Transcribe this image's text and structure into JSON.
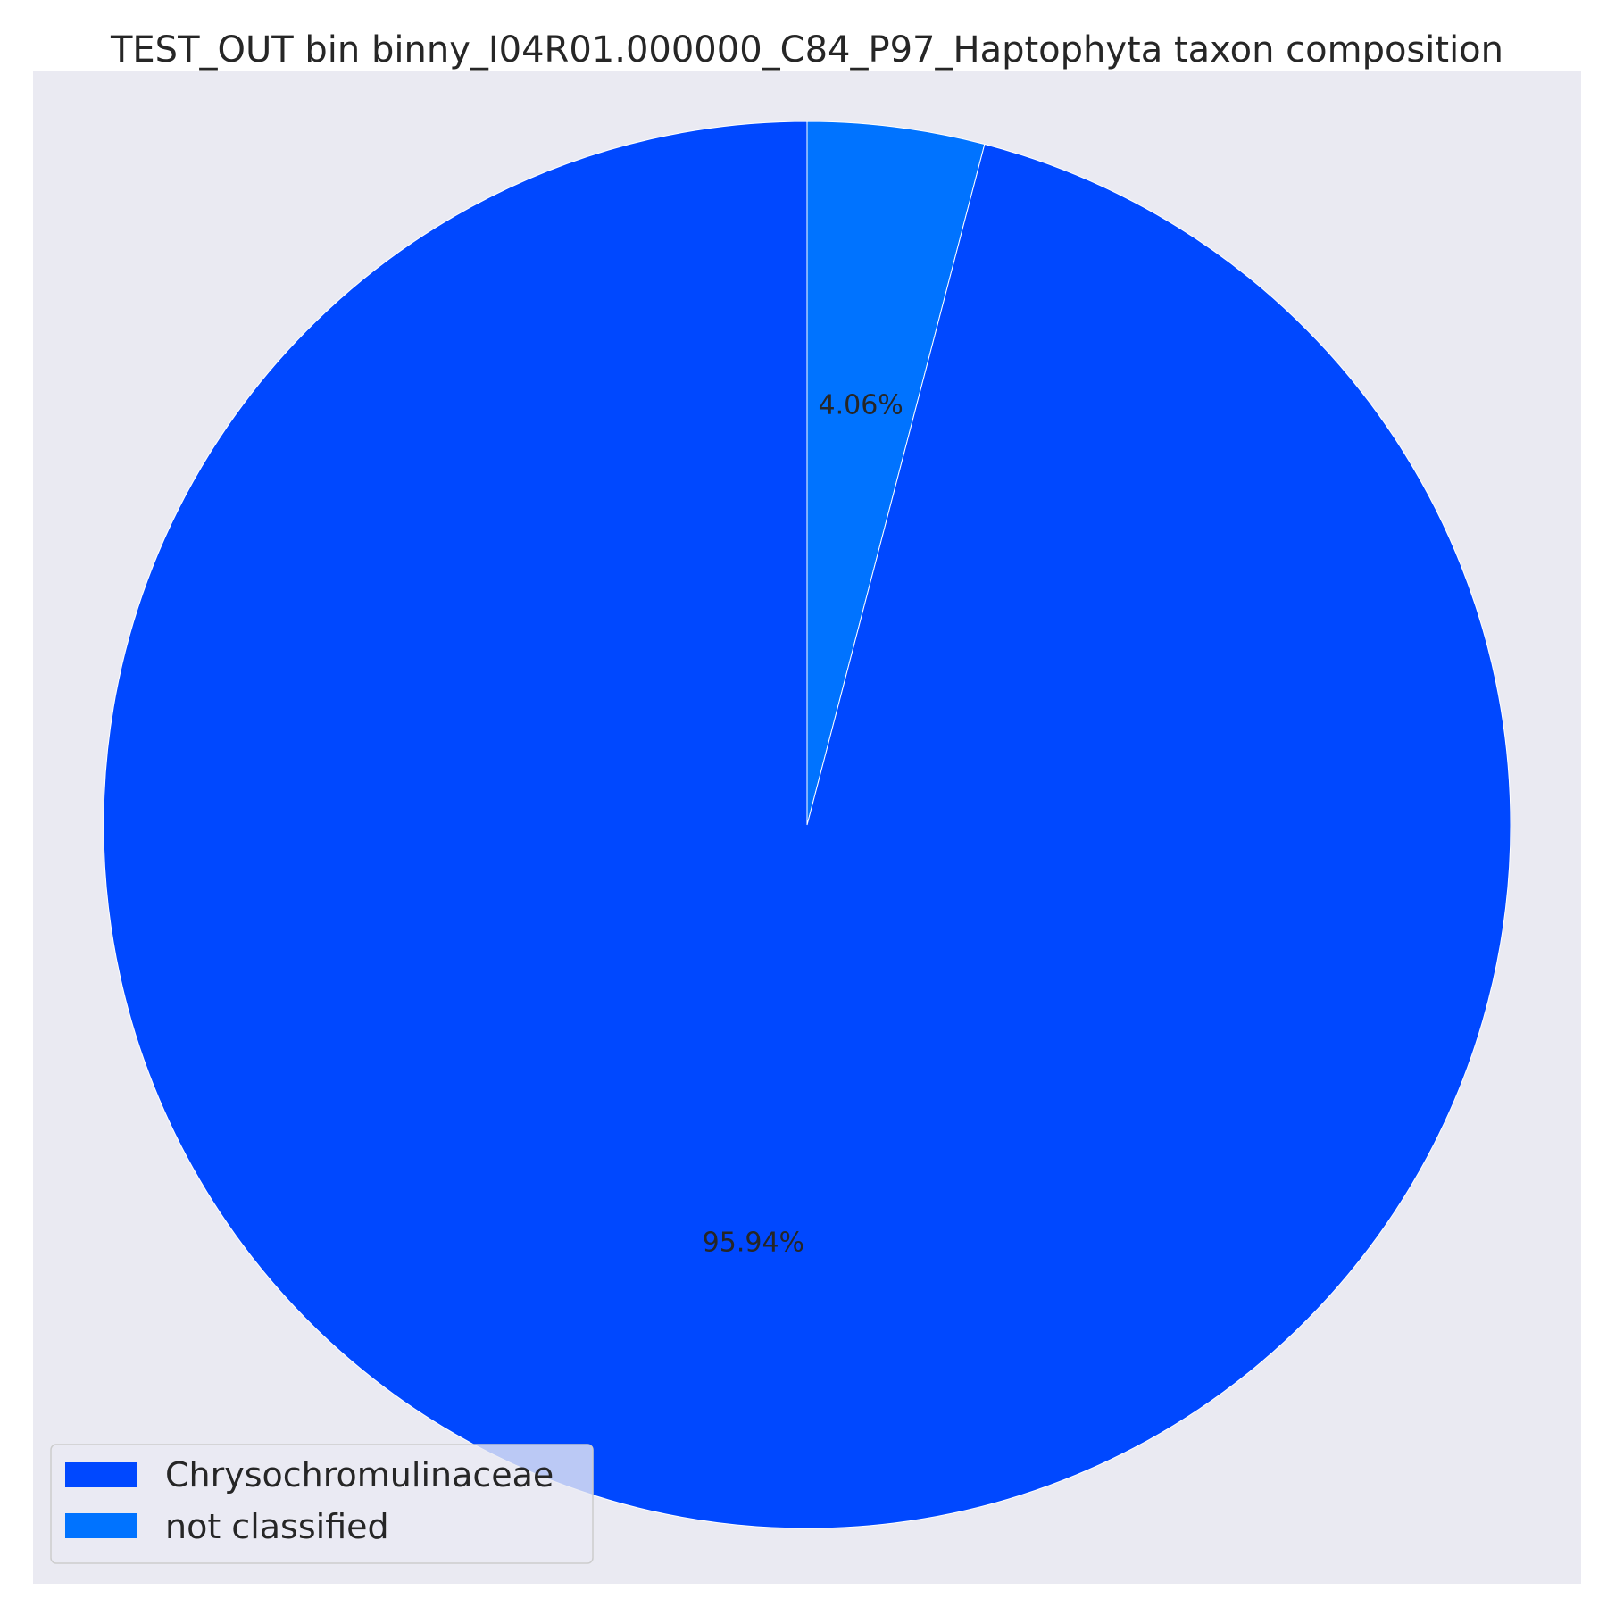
{
  "chart_data": {
    "type": "pie",
    "title": "TEST_OUT bin binny_I04R01.000000_C84_P97_Haptophyta taxon composition",
    "start_angle": "12 o'clock",
    "direction": "clockwise",
    "background_color": "#EAEAF2",
    "slice_edge_color": "#FFFFFF",
    "legend_position": "lower-left",
    "slices": [
      {
        "label": "not classified",
        "value": 4.06,
        "display": "4.06%",
        "color": "#0073FF"
      },
      {
        "label": "Chrysochromulinaceae",
        "value": 95.94,
        "display": "95.94%",
        "color": "#0048FF"
      }
    ],
    "legend": [
      {
        "label": "Chrysochromulinaceae",
        "color": "#0048FF"
      },
      {
        "label": "not classified",
        "color": "#0073FF"
      }
    ]
  }
}
